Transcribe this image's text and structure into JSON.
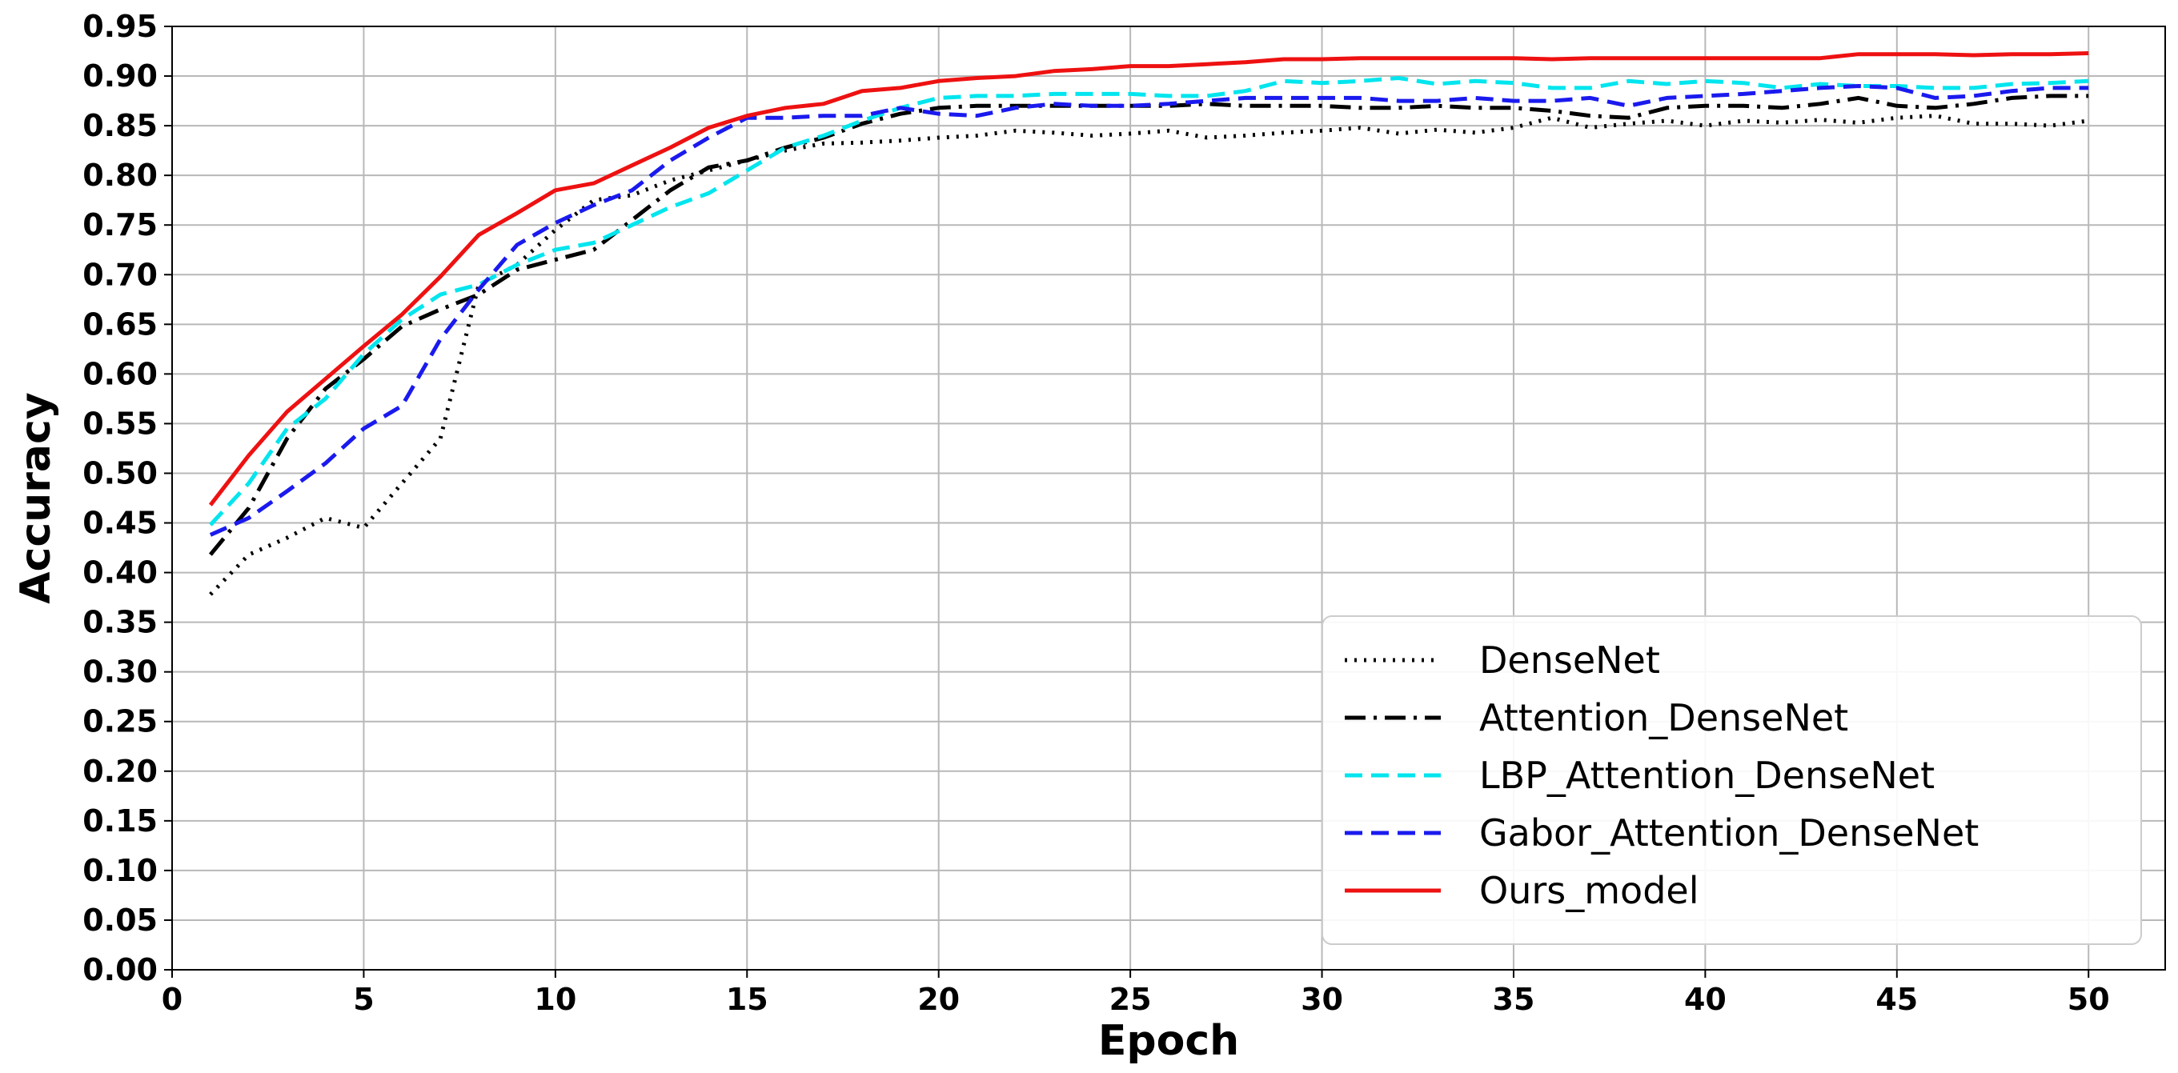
{
  "chart_data": {
    "type": "line",
    "title": "",
    "xlabel": "Epoch",
    "ylabel": "Accuracy",
    "xlim": [
      0,
      52
    ],
    "ylim": [
      0.0,
      0.95
    ],
    "grid": true,
    "legend_position": "lower-right",
    "x_ticks": [
      0,
      5,
      10,
      15,
      20,
      25,
      30,
      35,
      40,
      45,
      50
    ],
    "x_tick_labels": [
      "0",
      "5",
      "10",
      "15",
      "20",
      "25",
      "30",
      "35",
      "40",
      "45",
      "50"
    ],
    "y_ticks": [
      0.0,
      0.05,
      0.1,
      0.15,
      0.2,
      0.25,
      0.3,
      0.35,
      0.4,
      0.45,
      0.5,
      0.55,
      0.6,
      0.65,
      0.7,
      0.75,
      0.8,
      0.85,
      0.9,
      0.95
    ],
    "y_tick_labels": [
      "0.00",
      "0.05",
      "0.10",
      "0.15",
      "0.20",
      "0.25",
      "0.30",
      "0.35",
      "0.40",
      "0.45",
      "0.50",
      "0.55",
      "0.60",
      "0.65",
      "0.70",
      "0.75",
      "0.80",
      "0.85",
      "0.90",
      "0.95"
    ],
    "x": [
      1,
      2,
      3,
      4,
      5,
      6,
      7,
      8,
      9,
      10,
      11,
      12,
      13,
      14,
      15,
      16,
      17,
      18,
      19,
      20,
      21,
      22,
      23,
      24,
      25,
      26,
      27,
      28,
      29,
      30,
      31,
      32,
      33,
      34,
      35,
      36,
      37,
      38,
      39,
      40,
      41,
      42,
      43,
      44,
      45,
      46,
      47,
      48,
      49,
      50
    ],
    "series": [
      {
        "name": "DenseNet",
        "color": "#000000",
        "dash": "dotted",
        "values": [
          0.378,
          0.418,
          0.435,
          0.455,
          0.445,
          0.49,
          0.535,
          0.69,
          0.71,
          0.745,
          0.775,
          0.78,
          0.795,
          0.805,
          0.815,
          0.825,
          0.832,
          0.833,
          0.835,
          0.838,
          0.84,
          0.845,
          0.843,
          0.84,
          0.842,
          0.845,
          0.838,
          0.84,
          0.843,
          0.845,
          0.848,
          0.842,
          0.846,
          0.843,
          0.848,
          0.858,
          0.848,
          0.852,
          0.855,
          0.85,
          0.855,
          0.853,
          0.856,
          0.853,
          0.858,
          0.86,
          0.852,
          0.852,
          0.85,
          0.855
        ]
      },
      {
        "name": "Attention_DenseNet",
        "color": "#000000",
        "dash": "dashdot",
        "values": [
          0.418,
          0.465,
          0.535,
          0.585,
          0.615,
          0.648,
          0.665,
          0.68,
          0.705,
          0.715,
          0.725,
          0.755,
          0.785,
          0.808,
          0.815,
          0.828,
          0.838,
          0.852,
          0.862,
          0.868,
          0.87,
          0.87,
          0.87,
          0.87,
          0.87,
          0.87,
          0.872,
          0.87,
          0.87,
          0.87,
          0.868,
          0.868,
          0.87,
          0.868,
          0.868,
          0.865,
          0.86,
          0.858,
          0.868,
          0.87,
          0.87,
          0.868,
          0.872,
          0.878,
          0.87,
          0.868,
          0.872,
          0.878,
          0.88,
          0.88
        ]
      },
      {
        "name": "LBP_Attention_DenseNet",
        "color": "#00e5ee",
        "dash": "dashed",
        "values": [
          0.448,
          0.49,
          0.545,
          0.575,
          0.62,
          0.655,
          0.68,
          0.69,
          0.71,
          0.725,
          0.732,
          0.75,
          0.768,
          0.782,
          0.805,
          0.828,
          0.84,
          0.855,
          0.868,
          0.878,
          0.88,
          0.88,
          0.882,
          0.882,
          0.882,
          0.88,
          0.88,
          0.885,
          0.895,
          0.893,
          0.895,
          0.898,
          0.892,
          0.895,
          0.893,
          0.888,
          0.888,
          0.895,
          0.892,
          0.895,
          0.893,
          0.888,
          0.892,
          0.89,
          0.89,
          0.888,
          0.888,
          0.892,
          0.893,
          0.895
        ]
      },
      {
        "name": "Gabor_Attention_DenseNet",
        "color": "#1a1aee",
        "dash": "dashed",
        "values": [
          0.438,
          0.455,
          0.482,
          0.51,
          0.545,
          0.568,
          0.635,
          0.685,
          0.73,
          0.752,
          0.77,
          0.785,
          0.815,
          0.838,
          0.858,
          0.858,
          0.86,
          0.86,
          0.868,
          0.862,
          0.86,
          0.868,
          0.872,
          0.87,
          0.87,
          0.872,
          0.875,
          0.878,
          0.878,
          0.878,
          0.878,
          0.875,
          0.875,
          0.878,
          0.875,
          0.875,
          0.878,
          0.87,
          0.878,
          0.88,
          0.882,
          0.885,
          0.888,
          0.89,
          0.888,
          0.878,
          0.88,
          0.885,
          0.888,
          0.888
        ]
      },
      {
        "name": "Ours_model",
        "color": "#ee1111",
        "dash": "solid",
        "values": [
          0.468,
          0.518,
          0.562,
          0.595,
          0.628,
          0.66,
          0.698,
          0.74,
          0.762,
          0.785,
          0.792,
          0.81,
          0.828,
          0.848,
          0.86,
          0.868,
          0.872,
          0.885,
          0.888,
          0.895,
          0.898,
          0.9,
          0.905,
          0.907,
          0.91,
          0.91,
          0.912,
          0.914,
          0.917,
          0.917,
          0.918,
          0.918,
          0.918,
          0.918,
          0.918,
          0.917,
          0.918,
          0.918,
          0.918,
          0.918,
          0.918,
          0.918,
          0.918,
          0.922,
          0.922,
          0.922,
          0.921,
          0.922,
          0.922,
          0.923
        ]
      }
    ]
  }
}
